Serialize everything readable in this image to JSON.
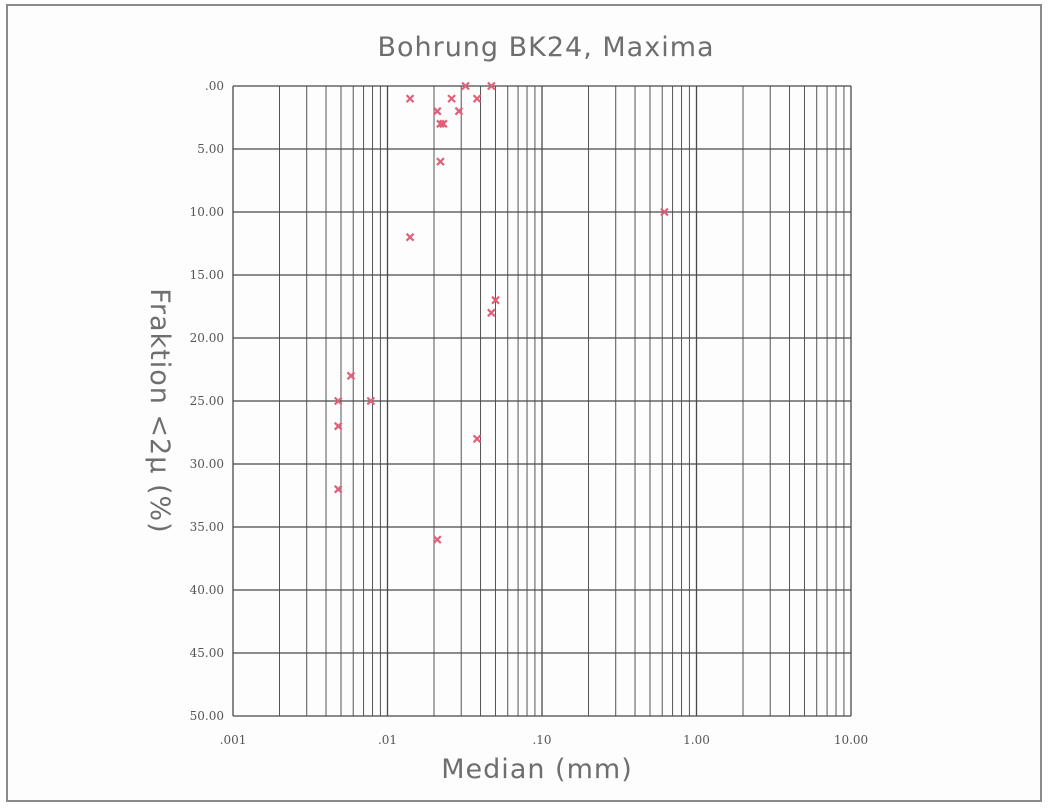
{
  "chart_data": {
    "type": "scatter",
    "title": "Bohrung BK24, Maxima",
    "xlabel": "Median (mm)",
    "ylabel": "Fraktion <2µ (%)",
    "x_scale": "log",
    "xlim": [
      0.001,
      10.0
    ],
    "ylim": [
      50.0,
      0.0
    ],
    "y_inverted": true,
    "grid": true,
    "x_ticks": [
      ".001",
      ".01",
      ".10",
      "1.00",
      "10.00"
    ],
    "y_ticks": [
      ".00",
      "5.00",
      "10.00",
      "15.00",
      "20.00",
      "25.00",
      "30.00",
      "35.00",
      "40.00",
      "45.00",
      "50.00"
    ],
    "marker_color": "#e0607a",
    "points": [
      {
        "x": 0.0048,
        "y": 25.0
      },
      {
        "x": 0.0048,
        "y": 27.0
      },
      {
        "x": 0.0048,
        "y": 32.0
      },
      {
        "x": 0.0058,
        "y": 23.0
      },
      {
        "x": 0.0078,
        "y": 25.0
      },
      {
        "x": 0.014,
        "y": 1.0
      },
      {
        "x": 0.014,
        "y": 12.0
      },
      {
        "x": 0.021,
        "y": 2.0
      },
      {
        "x": 0.021,
        "y": 36.0
      },
      {
        "x": 0.022,
        "y": 3.0
      },
      {
        "x": 0.023,
        "y": 3.0
      },
      {
        "x": 0.022,
        "y": 6.0
      },
      {
        "x": 0.026,
        "y": 1.0
      },
      {
        "x": 0.029,
        "y": 2.0
      },
      {
        "x": 0.032,
        "y": 0.0
      },
      {
        "x": 0.038,
        "y": 1.0
      },
      {
        "x": 0.038,
        "y": 28.0
      },
      {
        "x": 0.047,
        "y": 0.0
      },
      {
        "x": 0.047,
        "y": 18.0
      },
      {
        "x": 0.05,
        "y": 17.0
      },
      {
        "x": 0.62,
        "y": 10.0
      }
    ]
  }
}
